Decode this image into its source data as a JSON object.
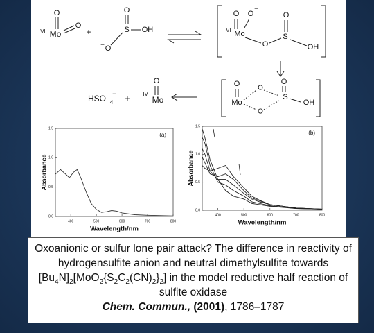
{
  "scheme": {
    "labels": [
      "VI",
      "Mo",
      "O",
      "O",
      "+",
      "O",
      "S",
      "OH",
      "−",
      "O",
      "VI",
      "Mo",
      "O",
      "O",
      "−",
      "O",
      "S",
      "O",
      "OH",
      "Mo",
      "O",
      "O",
      "O",
      "S",
      "O",
      "OH",
      "HSO",
      "4",
      "−",
      "+",
      "IV",
      "Mo",
      "O"
    ]
  },
  "chart_data": [
    {
      "type": "line",
      "label": "(a)",
      "y_label": "Absorbance",
      "x_label": "Wavelength/nm",
      "x": [
        340,
        360,
        380,
        395,
        410,
        425,
        440,
        460,
        480,
        500,
        520,
        540,
        560,
        580,
        600,
        650,
        700,
        800
      ],
      "series": [
        {
          "color": "#333333",
          "values": [
            0.72,
            0.8,
            0.72,
            0.66,
            0.75,
            0.8,
            0.65,
            0.42,
            0.22,
            0.12,
            0.07,
            0.08,
            0.1,
            0.09,
            0.06,
            0.03,
            0.02,
            0.01
          ]
        }
      ],
      "xlim": [
        340,
        800
      ],
      "xticks": [
        400,
        500,
        600,
        700,
        800
      ],
      "ylim": [
        0,
        1.5
      ],
      "yticks": [
        {
          "value": 0,
          "label": "0.0"
        },
        0.5,
        {
          "value": 1,
          "label": "1.0"
        },
        1.5
      ]
    },
    {
      "type": "line",
      "label": "(b)",
      "y_label": "Absorbance",
      "x_label": "Wavelength/nm",
      "x": [
        340,
        350,
        370,
        400,
        430,
        460,
        500,
        530,
        560,
        600,
        700,
        800
      ],
      "series": [
        {
          "color": "#222222",
          "values": [
            1.45,
            1.3,
            0.9,
            0.55,
            0.35,
            0.25,
            0.2,
            0.12,
            0.1,
            0.07,
            0.03,
            0.02
          ]
        },
        {
          "color": "#222222",
          "values": [
            1.3,
            1.2,
            0.8,
            0.5,
            0.45,
            0.35,
            0.25,
            0.15,
            0.12,
            0.08,
            0.03,
            0.02
          ]
        },
        {
          "color": "#222222",
          "values": [
            1.1,
            1.0,
            0.7,
            0.55,
            0.55,
            0.45,
            0.3,
            0.2,
            0.15,
            0.1,
            0.04,
            0.02
          ]
        },
        {
          "color": "#222222",
          "values": [
            0.95,
            0.85,
            0.65,
            0.6,
            0.65,
            0.55,
            0.35,
            0.22,
            0.17,
            0.1,
            0.04,
            0.02
          ]
        },
        {
          "color": "#222222",
          "values": [
            0.8,
            0.75,
            0.7,
            0.75,
            0.8,
            0.6,
            0.4,
            0.25,
            0.18,
            0.1,
            0.04,
            0.02
          ]
        }
      ],
      "xlim": [
        340,
        800
      ],
      "xticks": [
        400,
        500,
        600,
        700,
        800
      ],
      "ylim": [
        0,
        1.5
      ],
      "yticks": [
        {
          "value": 0,
          "label": "0.0"
        },
        0.5,
        {
          "value": 1,
          "label": "1.0"
        },
        1.5
      ]
    }
  ],
  "caption": {
    "title_parts": [
      "Oxoanionic or sulfur lone pair attack? The difference in reactivity of hydrogensulfite anion and neutral dimethylsulfite towards [Bu",
      "4",
      "N]",
      "2",
      "[MoO",
      "2",
      "{S",
      "2",
      "C",
      "2",
      "(CN)",
      "2",
      "}",
      "2",
      "] in the model reductive half reaction of sulfite oxidase"
    ],
    "citation": [
      "Chem. Commun.,",
      " (2001)",
      ", 1786–1787"
    ]
  }
}
